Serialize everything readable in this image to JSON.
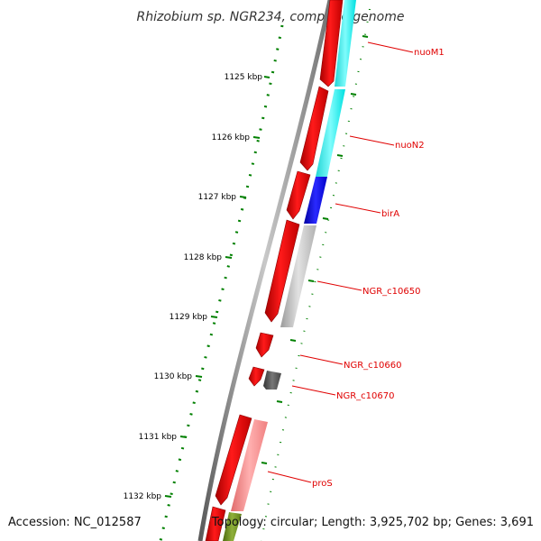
{
  "title": "Rhizobium sp. NGR234, complete genome",
  "footer": {
    "accession": "Accession: NC_012587",
    "topology": "Topology: circular; Length: 3,925,702 bp; Genes: 3,691"
  },
  "ticks": [
    "1125 kbp",
    "1126 kbp",
    "1127 kbp",
    "1128 kbp",
    "1129 kbp",
    "1130 kbp",
    "1131 kbp",
    "1132 kbp"
  ],
  "colors": {
    "title": "#333333",
    "backbone": "#888888",
    "strand_forward": "#ff0000",
    "scale_dots": "#008000",
    "label_line": "#ff0000",
    "nuo": "#00ffff",
    "birA": "#0000ff",
    "hypothetical": "#c0c0c0",
    "NGR_c10670": "#555555",
    "proS": "#ff8080",
    "next_gene": "#6b8e23"
  },
  "genes": [
    {
      "name": "nuoM1",
      "color": "cyan"
    },
    {
      "name": "nuoN2",
      "color": "cyan"
    },
    {
      "name": "birA",
      "color": "blue"
    },
    {
      "name": "NGR_c10650",
      "color": "light-gray"
    },
    {
      "name": "NGR_c10660",
      "color": "red"
    },
    {
      "name": "NGR_c10670",
      "color": "dark-gray"
    },
    {
      "name": "proS",
      "color": "pink"
    }
  ]
}
